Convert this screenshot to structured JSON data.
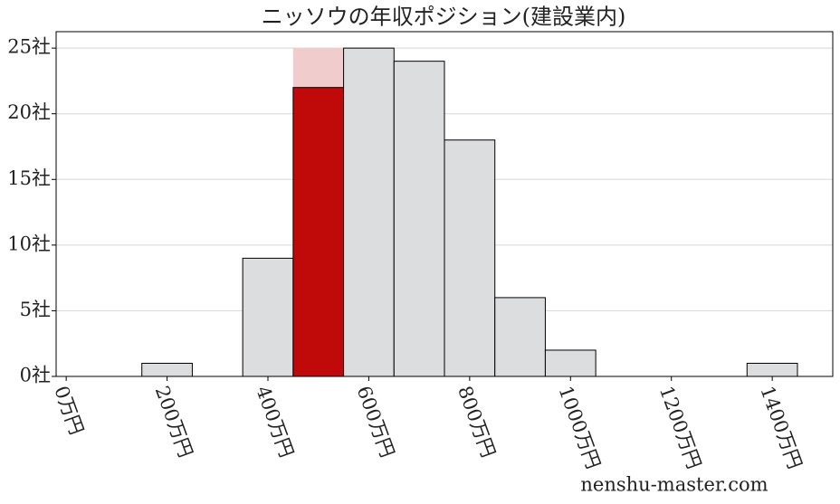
{
  "chart_data": {
    "type": "histogram",
    "title": "ニッソウの年収ポジション(建設業内)",
    "bins": [
      150,
      250,
      350,
      450,
      550,
      650,
      750,
      850,
      950,
      1050,
      1150,
      1250,
      1350,
      1450
    ],
    "values": [
      1,
      0,
      9,
      22,
      25,
      24,
      18,
      6,
      2,
      0,
      0,
      0,
      1
    ],
    "colors": [
      "#dcdddf",
      "#dcdddf",
      "#dcdddf",
      "#c00a0a",
      "#dcdddf",
      "#dcdddf",
      "#dcdddf",
      "#dcdddf",
      "#dcdddf",
      "#dcdddf",
      "#dcdddf",
      "#dcdddf",
      "#dcdddf"
    ],
    "overlay_values": [
      null,
      null,
      null,
      25,
      null,
      null,
      null,
      null,
      null,
      null,
      null,
      null,
      null
    ],
    "overlay_color": "#f0cccc",
    "xlim": [
      -20,
      1520
    ],
    "ylim": [
      0,
      26.25
    ],
    "xticks": [
      {
        "value": 0,
        "label": "0万円"
      },
      {
        "value": 200,
        "label": "200万円"
      },
      {
        "value": 400,
        "label": "400万円"
      },
      {
        "value": 600,
        "label": "600万円"
      },
      {
        "value": 800,
        "label": "800万円"
      },
      {
        "value": 1000,
        "label": "1000万円"
      },
      {
        "value": 1200,
        "label": "1200万円"
      },
      {
        "value": 1400,
        "label": "1400万円"
      }
    ],
    "yticks": [
      {
        "value": 0,
        "label": "0社"
      },
      {
        "value": 5,
        "label": "5社"
      },
      {
        "value": 10,
        "label": "10社"
      },
      {
        "value": 15,
        "label": "15社"
      },
      {
        "value": 20,
        "label": "20社"
      },
      {
        "value": 25,
        "label": "25社"
      }
    ],
    "grid": true,
    "watermark": "nenshu-master.com"
  }
}
